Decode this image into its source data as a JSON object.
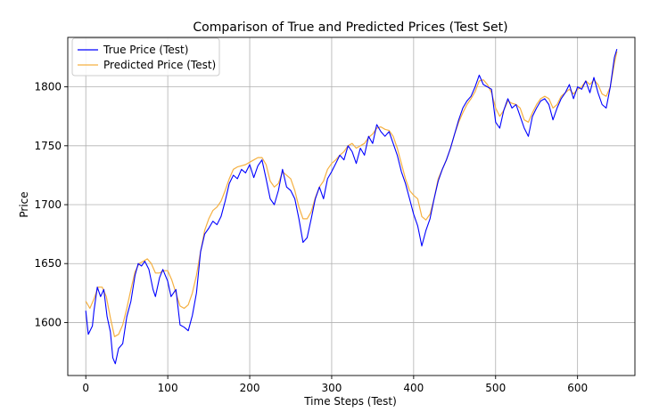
{
  "chart_data": {
    "type": "line",
    "title": "Comparison of True and Predicted Prices (Test Set)",
    "xlabel": "Time Steps (Test)",
    "ylabel": "Price",
    "xlim": [
      -22,
      670
    ],
    "ylim": [
      1555,
      1842
    ],
    "xticks": [
      0,
      100,
      200,
      300,
      400,
      500,
      600
    ],
    "yticks": [
      1600,
      1650,
      1700,
      1750,
      1800
    ],
    "grid": true,
    "legend": "top-left",
    "series": [
      {
        "name": "True Price (Test)",
        "color": "#0000ff",
        "points": [
          [
            0,
            1610
          ],
          [
            3,
            1590
          ],
          [
            8,
            1597
          ],
          [
            10,
            1610
          ],
          [
            14,
            1630
          ],
          [
            18,
            1622
          ],
          [
            22,
            1628
          ],
          [
            26,
            1605
          ],
          [
            30,
            1592
          ],
          [
            33,
            1570
          ],
          [
            36,
            1565
          ],
          [
            40,
            1578
          ],
          [
            45,
            1582
          ],
          [
            50,
            1605
          ],
          [
            55,
            1618
          ],
          [
            60,
            1640
          ],
          [
            64,
            1650
          ],
          [
            68,
            1648
          ],
          [
            72,
            1652
          ],
          [
            77,
            1645
          ],
          [
            82,
            1628
          ],
          [
            85,
            1622
          ],
          [
            90,
            1638
          ],
          [
            94,
            1645
          ],
          [
            100,
            1635
          ],
          [
            104,
            1622
          ],
          [
            110,
            1628
          ],
          [
            115,
            1598
          ],
          [
            120,
            1596
          ],
          [
            125,
            1593
          ],
          [
            130,
            1606
          ],
          [
            135,
            1625
          ],
          [
            140,
            1660
          ],
          [
            145,
            1675
          ],
          [
            150,
            1680
          ],
          [
            155,
            1686
          ],
          [
            160,
            1683
          ],
          [
            165,
            1690
          ],
          [
            170,
            1703
          ],
          [
            175,
            1718
          ],
          [
            180,
            1725
          ],
          [
            185,
            1722
          ],
          [
            190,
            1730
          ],
          [
            195,
            1727
          ],
          [
            200,
            1734
          ],
          [
            205,
            1723
          ],
          [
            210,
            1733
          ],
          [
            215,
            1738
          ],
          [
            220,
            1722
          ],
          [
            225,
            1705
          ],
          [
            230,
            1700
          ],
          [
            235,
            1712
          ],
          [
            240,
            1730
          ],
          [
            245,
            1715
          ],
          [
            250,
            1712
          ],
          [
            255,
            1705
          ],
          [
            260,
            1688
          ],
          [
            265,
            1668
          ],
          [
            270,
            1672
          ],
          [
            275,
            1688
          ],
          [
            280,
            1705
          ],
          [
            285,
            1715
          ],
          [
            290,
            1705
          ],
          [
            295,
            1722
          ],
          [
            300,
            1728
          ],
          [
            305,
            1735
          ],
          [
            310,
            1742
          ],
          [
            315,
            1738
          ],
          [
            320,
            1750
          ],
          [
            325,
            1745
          ],
          [
            330,
            1735
          ],
          [
            335,
            1748
          ],
          [
            340,
            1742
          ],
          [
            345,
            1758
          ],
          [
            350,
            1752
          ],
          [
            355,
            1768
          ],
          [
            360,
            1762
          ],
          [
            365,
            1758
          ],
          [
            370,
            1762
          ],
          [
            375,
            1752
          ],
          [
            380,
            1742
          ],
          [
            385,
            1728
          ],
          [
            390,
            1718
          ],
          [
            395,
            1705
          ],
          [
            400,
            1692
          ],
          [
            405,
            1682
          ],
          [
            410,
            1665
          ],
          [
            415,
            1678
          ],
          [
            420,
            1688
          ],
          [
            425,
            1705
          ],
          [
            430,
            1720
          ],
          [
            435,
            1730
          ],
          [
            440,
            1738
          ],
          [
            445,
            1748
          ],
          [
            450,
            1760
          ],
          [
            455,
            1772
          ],
          [
            460,
            1782
          ],
          [
            465,
            1788
          ],
          [
            470,
            1792
          ],
          [
            475,
            1800
          ],
          [
            480,
            1810
          ],
          [
            485,
            1802
          ],
          [
            490,
            1800
          ],
          [
            495,
            1798
          ],
          [
            500,
            1770
          ],
          [
            505,
            1765
          ],
          [
            510,
            1780
          ],
          [
            515,
            1790
          ],
          [
            520,
            1782
          ],
          [
            525,
            1785
          ],
          [
            530,
            1775
          ],
          [
            535,
            1765
          ],
          [
            540,
            1758
          ],
          [
            545,
            1775
          ],
          [
            550,
            1782
          ],
          [
            555,
            1788
          ],
          [
            560,
            1790
          ],
          [
            565,
            1785
          ],
          [
            570,
            1772
          ],
          [
            575,
            1782
          ],
          [
            580,
            1790
          ],
          [
            585,
            1795
          ],
          [
            590,
            1802
          ],
          [
            595,
            1790
          ],
          [
            600,
            1800
          ],
          [
            605,
            1798
          ],
          [
            610,
            1805
          ],
          [
            615,
            1795
          ],
          [
            620,
            1808
          ],
          [
            625,
            1795
          ],
          [
            630,
            1785
          ],
          [
            635,
            1782
          ],
          [
            640,
            1800
          ],
          [
            645,
            1825
          ],
          [
            648,
            1832
          ]
        ]
      },
      {
        "name": "Predicted Price (Test)",
        "color": "#f5b041",
        "points": [
          [
            0,
            1618
          ],
          [
            5,
            1612
          ],
          [
            10,
            1620
          ],
          [
            15,
            1630
          ],
          [
            20,
            1630
          ],
          [
            25,
            1622
          ],
          [
            30,
            1604
          ],
          [
            35,
            1588
          ],
          [
            40,
            1590
          ],
          [
            45,
            1598
          ],
          [
            50,
            1612
          ],
          [
            55,
            1628
          ],
          [
            60,
            1643
          ],
          [
            65,
            1650
          ],
          [
            70,
            1652
          ],
          [
            75,
            1654
          ],
          [
            80,
            1650
          ],
          [
            85,
            1642
          ],
          [
            90,
            1642
          ],
          [
            95,
            1644
          ],
          [
            100,
            1644
          ],
          [
            105,
            1636
          ],
          [
            110,
            1625
          ],
          [
            115,
            1614
          ],
          [
            120,
            1612
          ],
          [
            125,
            1615
          ],
          [
            130,
            1625
          ],
          [
            135,
            1640
          ],
          [
            140,
            1660
          ],
          [
            145,
            1678
          ],
          [
            150,
            1688
          ],
          [
            155,
            1695
          ],
          [
            160,
            1698
          ],
          [
            165,
            1703
          ],
          [
            170,
            1712
          ],
          [
            175,
            1722
          ],
          [
            180,
            1730
          ],
          [
            185,
            1732
          ],
          [
            190,
            1733
          ],
          [
            195,
            1734
          ],
          [
            200,
            1736
          ],
          [
            205,
            1738
          ],
          [
            210,
            1740
          ],
          [
            215,
            1740
          ],
          [
            220,
            1734
          ],
          [
            225,
            1720
          ],
          [
            230,
            1715
          ],
          [
            235,
            1718
          ],
          [
            240,
            1728
          ],
          [
            245,
            1725
          ],
          [
            250,
            1722
          ],
          [
            255,
            1712
          ],
          [
            260,
            1698
          ],
          [
            265,
            1688
          ],
          [
            270,
            1688
          ],
          [
            275,
            1694
          ],
          [
            280,
            1706
          ],
          [
            285,
            1715
          ],
          [
            290,
            1720
          ],
          [
            295,
            1730
          ],
          [
            300,
            1735
          ],
          [
            305,
            1738
          ],
          [
            310,
            1742
          ],
          [
            315,
            1745
          ],
          [
            320,
            1750
          ],
          [
            325,
            1752
          ],
          [
            330,
            1748
          ],
          [
            335,
            1750
          ],
          [
            340,
            1752
          ],
          [
            345,
            1757
          ],
          [
            350,
            1760
          ],
          [
            355,
            1765
          ],
          [
            360,
            1766
          ],
          [
            365,
            1764
          ],
          [
            370,
            1763
          ],
          [
            375,
            1758
          ],
          [
            380,
            1748
          ],
          [
            385,
            1735
          ],
          [
            390,
            1722
          ],
          [
            395,
            1712
          ],
          [
            400,
            1708
          ],
          [
            405,
            1705
          ],
          [
            410,
            1690
          ],
          [
            415,
            1687
          ],
          [
            420,
            1692
          ],
          [
            425,
            1705
          ],
          [
            430,
            1722
          ],
          [
            435,
            1730
          ],
          [
            440,
            1738
          ],
          [
            445,
            1748
          ],
          [
            450,
            1760
          ],
          [
            455,
            1770
          ],
          [
            460,
            1778
          ],
          [
            465,
            1785
          ],
          [
            470,
            1790
          ],
          [
            475,
            1796
          ],
          [
            480,
            1805
          ],
          [
            485,
            1806
          ],
          [
            490,
            1802
          ],
          [
            495,
            1795
          ],
          [
            500,
            1782
          ],
          [
            505,
            1775
          ],
          [
            510,
            1780
          ],
          [
            515,
            1788
          ],
          [
            520,
            1786
          ],
          [
            525,
            1785
          ],
          [
            530,
            1782
          ],
          [
            535,
            1772
          ],
          [
            540,
            1770
          ],
          [
            545,
            1778
          ],
          [
            550,
            1785
          ],
          [
            555,
            1790
          ],
          [
            560,
            1792
          ],
          [
            565,
            1790
          ],
          [
            570,
            1782
          ],
          [
            575,
            1785
          ],
          [
            580,
            1792
          ],
          [
            585,
            1795
          ],
          [
            590,
            1798
          ],
          [
            595,
            1794
          ],
          [
            600,
            1798
          ],
          [
            605,
            1800
          ],
          [
            610,
            1805
          ],
          [
            615,
            1802
          ],
          [
            620,
            1806
          ],
          [
            625,
            1802
          ],
          [
            630,
            1794
          ],
          [
            635,
            1792
          ],
          [
            640,
            1800
          ],
          [
            645,
            1820
          ],
          [
            648,
            1830
          ]
        ]
      }
    ]
  }
}
